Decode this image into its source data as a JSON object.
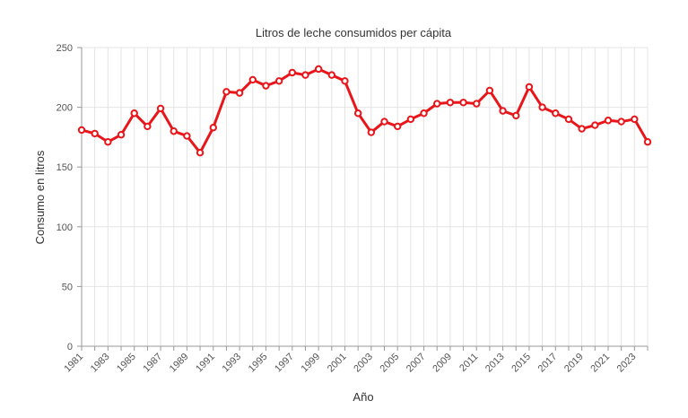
{
  "chart_data": {
    "type": "line",
    "title": "Litros de leche consumidos per cápita",
    "xlabel": "Año",
    "ylabel": "Consumo en litros",
    "x": [
      1981,
      1982,
      1983,
      1984,
      1985,
      1986,
      1987,
      1988,
      1989,
      1990,
      1991,
      1992,
      1993,
      1994,
      1995,
      1996,
      1997,
      1998,
      1999,
      2000,
      2001,
      2002,
      2003,
      2004,
      2005,
      2006,
      2007,
      2008,
      2009,
      2010,
      2011,
      2012,
      2013,
      2014,
      2015,
      2016,
      2017,
      2018,
      2019,
      2020,
      2021,
      2022,
      2023,
      2024
    ],
    "series": [
      {
        "values": [
          181,
          178,
          171,
          177,
          195,
          184,
          199,
          180,
          176,
          162,
          183,
          213,
          212,
          223,
          218,
          222,
          229,
          227,
          232,
          227,
          222,
          195,
          179,
          188,
          184,
          190,
          195,
          203,
          204,
          204,
          203,
          214,
          197,
          193,
          217,
          200,
          195,
          190,
          182,
          185,
          189,
          188,
          190,
          171
        ]
      }
    ],
    "x_tick_labels": [
      "1981",
      "1983",
      "1985",
      "1987",
      "1989",
      "1991",
      "1993",
      "1995",
      "1997",
      "1999",
      "2001",
      "2003",
      "2005",
      "2007",
      "2009",
      "2011",
      "2013",
      "2015",
      "2017",
      "2019",
      "2021",
      "2023"
    ],
    "y_ticks": [
      0,
      50,
      100,
      150,
      200,
      250
    ],
    "ylim": [
      0,
      250
    ],
    "grid": true,
    "legend": "none",
    "colors": {
      "line": "#e8161a",
      "marker_fill": "#ffffff"
    }
  }
}
